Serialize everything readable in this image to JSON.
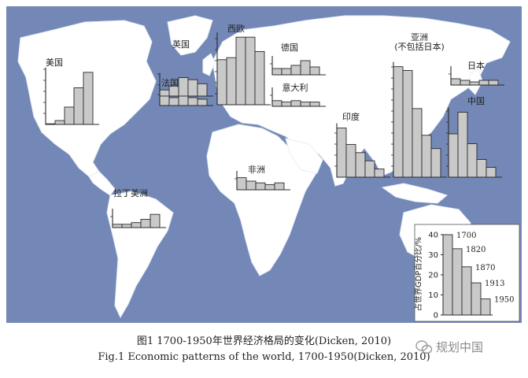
{
  "colors": {
    "ocean": "#7388b6",
    "land": "#ffffff",
    "bar_fill": "#c9c9c9",
    "bar_stroke": "#2a2a2a",
    "axis": "#2a2a2a",
    "text": "#222222"
  },
  "caption": {
    "cn": "图1   1700-1950年世界经济格局的变化(Dicken, 2010)",
    "en": "Fig.1   Economic patterns of the world, 1700-1950(Dicken, 2010)"
  },
  "watermark": {
    "icon": "wechat-icon",
    "text": "规划中国"
  },
  "chart_data": [
    {
      "type": "bar",
      "label": "美国",
      "categories": [
        "1700",
        "1820",
        "1870",
        "1913",
        "1950"
      ],
      "values": [
        0.1,
        2,
        9,
        19,
        27
      ]
    },
    {
      "type": "bar",
      "label": "英国",
      "categories": [
        "1700",
        "1820",
        "1870",
        "1913",
        "1950"
      ],
      "values": [
        3,
        5,
        9,
        8,
        6
      ]
    },
    {
      "type": "bar",
      "label": "西欧",
      "categories": [
        "1700",
        "1820",
        "1870",
        "1913",
        "1950"
      ],
      "values": [
        22,
        23,
        33,
        33,
        26
      ]
    },
    {
      "type": "bar",
      "label": "德国",
      "categories": [
        "1700",
        "1820",
        "1870",
        "1913",
        "1950"
      ],
      "values": [
        4,
        4,
        6,
        9,
        5
      ]
    },
    {
      "type": "bar",
      "label": "法国",
      "categories": [
        "1700",
        "1820",
        "1870",
        "1913",
        "1950"
      ],
      "values": [
        6,
        5,
        6,
        5,
        4
      ]
    },
    {
      "type": "bar",
      "label": "意大利",
      "categories": [
        "1700",
        "1820",
        "1870",
        "1913",
        "1950"
      ],
      "values": [
        4,
        3,
        4,
        3,
        3
      ]
    },
    {
      "type": "bar",
      "label": "印度",
      "categories": [
        "1700",
        "1820",
        "1870",
        "1913",
        "1950"
      ],
      "values": [
        24,
        16,
        12,
        8,
        4
      ]
    },
    {
      "type": "bar",
      "label": "亚洲\n(不包括日本)",
      "categories": [
        "1700",
        "1820",
        "1870",
        "1913",
        "1950"
      ],
      "values": [
        58,
        56,
        36,
        22,
        15
      ]
    },
    {
      "type": "bar",
      "label": "日本",
      "categories": [
        "1700",
        "1820",
        "1870",
        "1913",
        "1950"
      ],
      "values": [
        4,
        3,
        2,
        3,
        3
      ]
    },
    {
      "type": "bar",
      "label": "中国",
      "categories": [
        "1700",
        "1820",
        "1870",
        "1913",
        "1950"
      ],
      "values": [
        22,
        33,
        17,
        9,
        5
      ]
    },
    {
      "type": "bar",
      "label": "非洲",
      "categories": [
        "1700",
        "1820",
        "1870",
        "1913",
        "1950"
      ],
      "values": [
        7,
        5,
        4,
        3,
        4
      ]
    },
    {
      "type": "bar",
      "label": "拉丁美洲",
      "categories": [
        "1700",
        "1820",
        "1870",
        "1913",
        "1950"
      ],
      "values": [
        2,
        2,
        3,
        5,
        8
      ]
    },
    {
      "type": "bar",
      "label": "legend",
      "ylabel": "占世界GDP百分比/%",
      "categories": [
        "1700",
        "1820",
        "1870",
        "1913",
        "1950"
      ],
      "values": [
        40,
        33,
        24,
        16,
        8
      ],
      "ylim": [
        0,
        40
      ],
      "yticks": [
        "0",
        "10",
        "20",
        "30",
        "40"
      ]
    }
  ]
}
